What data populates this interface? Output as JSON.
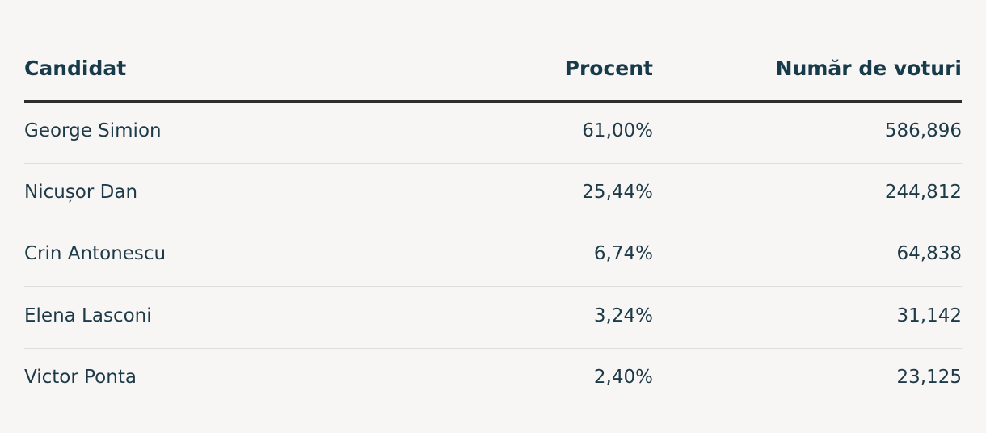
{
  "table": {
    "headers": [
      "Candidat",
      "Procent",
      "Număr de voturi"
    ],
    "rows": [
      [
        "George Simion",
        "61,00%",
        "586,896"
      ],
      [
        "Nicușor Dan",
        "25,44%",
        "244,812"
      ],
      [
        "Crin Antonescu",
        "6,74%",
        "64,838"
      ],
      [
        "Elena Lasconi",
        "3,24%",
        "31,142"
      ],
      [
        "Victor Ponta",
        "2,40%",
        "23,125"
      ]
    ]
  }
}
